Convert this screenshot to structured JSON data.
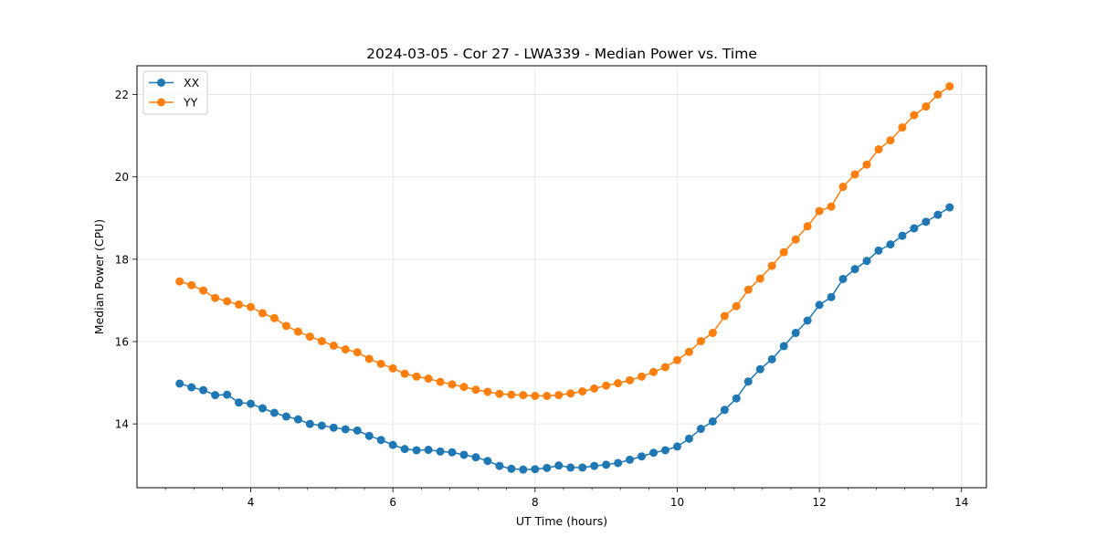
{
  "chart_data": {
    "type": "line",
    "title": "2024-03-05 - Cor 27 - LWA339 - Median Power vs. Time",
    "xlabel": "UT Time (hours)",
    "ylabel": "Median Power (CPU)",
    "xlim": [
      2.4,
      14.35
    ],
    "ylim": [
      12.45,
      22.7
    ],
    "xticks": [
      4,
      6,
      8,
      10,
      12,
      14
    ],
    "yticks": [
      14,
      16,
      18,
      20,
      22
    ],
    "grid": true,
    "legend_position": "top-left",
    "x": [
      3.0,
      3.167,
      3.333,
      3.5,
      3.667,
      3.833,
      4.0,
      4.167,
      4.333,
      4.5,
      4.667,
      4.833,
      5.0,
      5.167,
      5.333,
      5.5,
      5.667,
      5.833,
      6.0,
      6.167,
      6.333,
      6.5,
      6.667,
      6.833,
      7.0,
      7.167,
      7.333,
      7.5,
      7.667,
      7.833,
      8.0,
      8.167,
      8.333,
      8.5,
      8.667,
      8.833,
      9.0,
      9.167,
      9.333,
      9.5,
      9.667,
      9.833,
      10.0,
      10.167,
      10.333,
      10.5,
      10.667,
      10.833,
      11.0,
      11.167,
      11.333,
      11.5,
      11.667,
      11.833,
      12.0,
      12.167,
      12.333,
      12.5,
      12.667,
      12.833,
      13.0,
      13.167,
      13.333,
      13.5,
      13.667,
      13.833
    ],
    "series": [
      {
        "name": "XX",
        "color": "#1f77b4",
        "values": [
          14.98,
          14.89,
          14.82,
          14.7,
          14.71,
          14.52,
          14.49,
          14.38,
          14.27,
          14.18,
          14.11,
          14.0,
          13.96,
          13.91,
          13.87,
          13.84,
          13.71,
          13.61,
          13.49,
          13.39,
          13.36,
          13.37,
          13.33,
          13.31,
          13.25,
          13.19,
          13.1,
          12.98,
          12.91,
          12.89,
          12.9,
          12.93,
          12.99,
          12.94,
          12.94,
          12.98,
          13.01,
          13.05,
          13.13,
          13.21,
          13.3,
          13.36,
          13.45,
          13.64,
          13.88,
          14.06,
          14.34,
          14.62,
          15.03,
          15.33,
          15.57,
          15.89,
          16.21,
          16.51,
          16.89,
          17.08,
          17.52,
          17.76,
          17.96,
          18.21,
          18.36,
          18.57,
          18.75,
          18.91,
          19.08,
          19.26
        ]
      },
      {
        "name": "YY",
        "color": "#ff7f0e",
        "values": [
          17.46,
          17.37,
          17.24,
          17.06,
          16.98,
          16.9,
          16.84,
          16.69,
          16.57,
          16.38,
          16.24,
          16.12,
          16.01,
          15.9,
          15.81,
          15.74,
          15.58,
          15.46,
          15.35,
          15.22,
          15.15,
          15.1,
          15.02,
          14.96,
          14.9,
          14.83,
          14.78,
          14.73,
          14.71,
          14.7,
          14.68,
          14.68,
          14.7,
          14.74,
          14.79,
          14.86,
          14.93,
          14.99,
          15.06,
          15.15,
          15.26,
          15.38,
          15.55,
          15.75,
          16.01,
          16.21,
          16.62,
          16.86,
          17.26,
          17.53,
          17.84,
          18.17,
          18.48,
          18.8,
          19.17,
          19.28,
          19.76,
          20.06,
          20.3,
          20.67,
          20.89,
          21.2,
          21.5,
          21.71,
          22.0,
          22.2
        ]
      }
    ]
  }
}
